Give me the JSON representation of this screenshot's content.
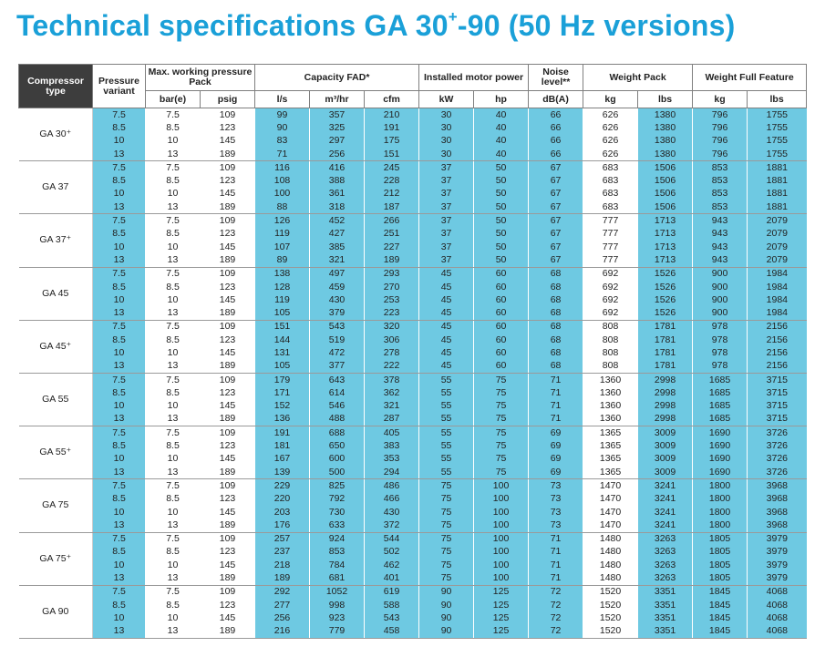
{
  "title": {
    "prefix": "Technical specifications GA 30",
    "sup": "+",
    "suffix": "-90 (50 Hz versions)"
  },
  "headers": {
    "compressor_type": "Compressor type",
    "pressure_variant": "Pressure variant",
    "max_working_pressure": "Max. working pressure Pack",
    "capacity": "Capacity FAD*",
    "installed_motor_power": "Installed motor power",
    "noise_level": "Noise level**",
    "weight_pack": "Weight Pack",
    "weight_full_feature": "Weight Full Feature"
  },
  "units": [
    "bar(e)",
    "psig",
    "l/s",
    "m³/hr",
    "cfm",
    "kW",
    "hp",
    "dB(A)",
    "kg",
    "lbs",
    "kg",
    "lbs"
  ],
  "models": [
    {
      "name": "GA 30⁺",
      "rows": [
        [
          "7.5",
          "7.5",
          "109",
          "99",
          "357",
          "210",
          "30",
          "40",
          "66",
          "626",
          "1380",
          "796",
          "1755"
        ],
        [
          "8.5",
          "8.5",
          "123",
          "90",
          "325",
          "191",
          "30",
          "40",
          "66",
          "626",
          "1380",
          "796",
          "1755"
        ],
        [
          "10",
          "10",
          "145",
          "83",
          "297",
          "175",
          "30",
          "40",
          "66",
          "626",
          "1380",
          "796",
          "1755"
        ],
        [
          "13",
          "13",
          "189",
          "71",
          "256",
          "151",
          "30",
          "40",
          "66",
          "626",
          "1380",
          "796",
          "1755"
        ]
      ]
    },
    {
      "name": "GA 37",
      "rows": [
        [
          "7.5",
          "7.5",
          "109",
          "116",
          "416",
          "245",
          "37",
          "50",
          "67",
          "683",
          "1506",
          "853",
          "1881"
        ],
        [
          "8.5",
          "8.5",
          "123",
          "108",
          "388",
          "228",
          "37",
          "50",
          "67",
          "683",
          "1506",
          "853",
          "1881"
        ],
        [
          "10",
          "10",
          "145",
          "100",
          "361",
          "212",
          "37",
          "50",
          "67",
          "683",
          "1506",
          "853",
          "1881"
        ],
        [
          "13",
          "13",
          "189",
          "88",
          "318",
          "187",
          "37",
          "50",
          "67",
          "683",
          "1506",
          "853",
          "1881"
        ]
      ]
    },
    {
      "name": "GA 37⁺",
      "rows": [
        [
          "7.5",
          "7.5",
          "109",
          "126",
          "452",
          "266",
          "37",
          "50",
          "67",
          "777",
          "1713",
          "943",
          "2079"
        ],
        [
          "8.5",
          "8.5",
          "123",
          "119",
          "427",
          "251",
          "37",
          "50",
          "67",
          "777",
          "1713",
          "943",
          "2079"
        ],
        [
          "10",
          "10",
          "145",
          "107",
          "385",
          "227",
          "37",
          "50",
          "67",
          "777",
          "1713",
          "943",
          "2079"
        ],
        [
          "13",
          "13",
          "189",
          "89",
          "321",
          "189",
          "37",
          "50",
          "67",
          "777",
          "1713",
          "943",
          "2079"
        ]
      ]
    },
    {
      "name": "GA 45",
      "rows": [
        [
          "7.5",
          "7.5",
          "109",
          "138",
          "497",
          "293",
          "45",
          "60",
          "68",
          "692",
          "1526",
          "900",
          "1984"
        ],
        [
          "8.5",
          "8.5",
          "123",
          "128",
          "459",
          "270",
          "45",
          "60",
          "68",
          "692",
          "1526",
          "900",
          "1984"
        ],
        [
          "10",
          "10",
          "145",
          "119",
          "430",
          "253",
          "45",
          "60",
          "68",
          "692",
          "1526",
          "900",
          "1984"
        ],
        [
          "13",
          "13",
          "189",
          "105",
          "379",
          "223",
          "45",
          "60",
          "68",
          "692",
          "1526",
          "900",
          "1984"
        ]
      ]
    },
    {
      "name": "GA 45⁺",
      "rows": [
        [
          "7.5",
          "7.5",
          "109",
          "151",
          "543",
          "320",
          "45",
          "60",
          "68",
          "808",
          "1781",
          "978",
          "2156"
        ],
        [
          "8.5",
          "8.5",
          "123",
          "144",
          "519",
          "306",
          "45",
          "60",
          "68",
          "808",
          "1781",
          "978",
          "2156"
        ],
        [
          "10",
          "10",
          "145",
          "131",
          "472",
          "278",
          "45",
          "60",
          "68",
          "808",
          "1781",
          "978",
          "2156"
        ],
        [
          "13",
          "13",
          "189",
          "105",
          "377",
          "222",
          "45",
          "60",
          "68",
          "808",
          "1781",
          "978",
          "2156"
        ]
      ]
    },
    {
      "name": "GA 55",
      "rows": [
        [
          "7.5",
          "7.5",
          "109",
          "179",
          "643",
          "378",
          "55",
          "75",
          "71",
          "1360",
          "2998",
          "1685",
          "3715"
        ],
        [
          "8.5",
          "8.5",
          "123",
          "171",
          "614",
          "362",
          "55",
          "75",
          "71",
          "1360",
          "2998",
          "1685",
          "3715"
        ],
        [
          "10",
          "10",
          "145",
          "152",
          "546",
          "321",
          "55",
          "75",
          "71",
          "1360",
          "2998",
          "1685",
          "3715"
        ],
        [
          "13",
          "13",
          "189",
          "136",
          "488",
          "287",
          "55",
          "75",
          "71",
          "1360",
          "2998",
          "1685",
          "3715"
        ]
      ]
    },
    {
      "name": "GA 55⁺",
      "rows": [
        [
          "7.5",
          "7.5",
          "109",
          "191",
          "688",
          "405",
          "55",
          "75",
          "69",
          "1365",
          "3009",
          "1690",
          "3726"
        ],
        [
          "8.5",
          "8.5",
          "123",
          "181",
          "650",
          "383",
          "55",
          "75",
          "69",
          "1365",
          "3009",
          "1690",
          "3726"
        ],
        [
          "10",
          "10",
          "145",
          "167",
          "600",
          "353",
          "55",
          "75",
          "69",
          "1365",
          "3009",
          "1690",
          "3726"
        ],
        [
          "13",
          "13",
          "189",
          "139",
          "500",
          "294",
          "55",
          "75",
          "69",
          "1365",
          "3009",
          "1690",
          "3726"
        ]
      ]
    },
    {
      "name": "GA 75",
      "rows": [
        [
          "7.5",
          "7.5",
          "109",
          "229",
          "825",
          "486",
          "75",
          "100",
          "73",
          "1470",
          "3241",
          "1800",
          "3968"
        ],
        [
          "8.5",
          "8.5",
          "123",
          "220",
          "792",
          "466",
          "75",
          "100",
          "73",
          "1470",
          "3241",
          "1800",
          "3968"
        ],
        [
          "10",
          "10",
          "145",
          "203",
          "730",
          "430",
          "75",
          "100",
          "73",
          "1470",
          "3241",
          "1800",
          "3968"
        ],
        [
          "13",
          "13",
          "189",
          "176",
          "633",
          "372",
          "75",
          "100",
          "73",
          "1470",
          "3241",
          "1800",
          "3968"
        ]
      ]
    },
    {
      "name": "GA 75⁺",
      "rows": [
        [
          "7.5",
          "7.5",
          "109",
          "257",
          "924",
          "544",
          "75",
          "100",
          "71",
          "1480",
          "3263",
          "1805",
          "3979"
        ],
        [
          "8.5",
          "8.5",
          "123",
          "237",
          "853",
          "502",
          "75",
          "100",
          "71",
          "1480",
          "3263",
          "1805",
          "3979"
        ],
        [
          "10",
          "10",
          "145",
          "218",
          "784",
          "462",
          "75",
          "100",
          "71",
          "1480",
          "3263",
          "1805",
          "3979"
        ],
        [
          "13",
          "13",
          "189",
          "189",
          "681",
          "401",
          "75",
          "100",
          "71",
          "1480",
          "3263",
          "1805",
          "3979"
        ]
      ]
    },
    {
      "name": "GA 90",
      "rows": [
        [
          "7.5",
          "7.5",
          "109",
          "292",
          "1052",
          "619",
          "90",
          "125",
          "72",
          "1520",
          "3351",
          "1845",
          "4068"
        ],
        [
          "8.5",
          "8.5",
          "123",
          "277",
          "998",
          "588",
          "90",
          "125",
          "72",
          "1520",
          "3351",
          "1845",
          "4068"
        ],
        [
          "10",
          "10",
          "145",
          "256",
          "923",
          "543",
          "90",
          "125",
          "72",
          "1520",
          "3351",
          "1845",
          "4068"
        ],
        [
          "13",
          "13",
          "189",
          "216",
          "779",
          "458",
          "90",
          "125",
          "72",
          "1520",
          "3351",
          "1845",
          "4068"
        ]
      ]
    }
  ]
}
